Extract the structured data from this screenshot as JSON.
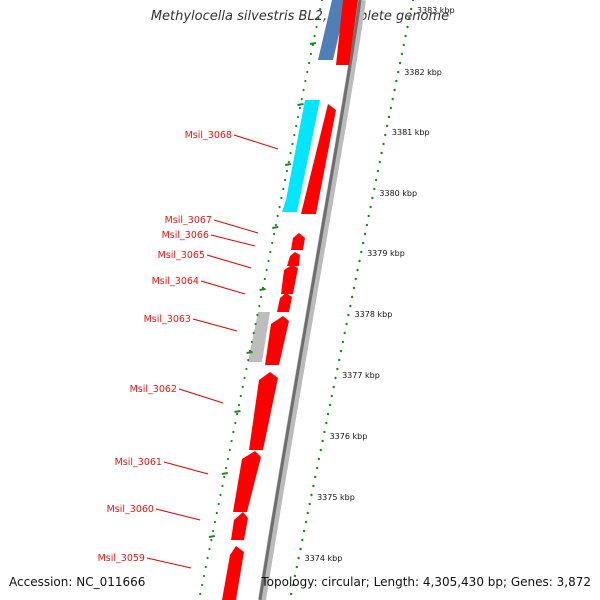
{
  "title": "Methylocella silvestris BL2, complete genome",
  "accession": "Accession: NC_011666",
  "topology": "Topology: circular; Length: 4,305,430 bp; Genes: 3,872",
  "colors": {
    "gene_forward": "#ff0000",
    "gene_reverse_cyan": "#00e6ff",
    "gene_reverse_blue": "#4f7fb5",
    "gene_reverse_gray": "#bdbdbd",
    "backbone": "#777777",
    "tick_dots": "#1a8a1a",
    "label_color": "#e00000"
  },
  "ticks": [
    "3383 kbp",
    "3382 kbp",
    "3381 kbp",
    "3380 kbp",
    "3379 kbp",
    "3378 kbp",
    "3377 kbp",
    "3376 kbp",
    "3375 kbp",
    "3374 kbp"
  ],
  "gene_labels": [
    "Msil_3068",
    "Msil_3067",
    "Msil_3066",
    "Msil_3065",
    "Msil_3064",
    "Msil_3063",
    "Msil_3062",
    "Msil_3061",
    "Msil_3060",
    "Msil_3059"
  ]
}
